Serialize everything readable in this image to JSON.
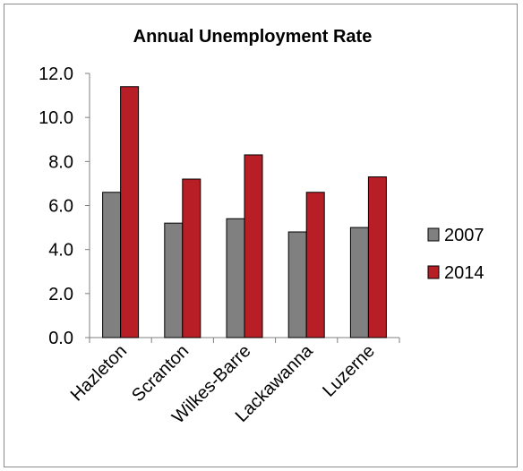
{
  "chart_data": {
    "type": "bar",
    "title": "Annual Unemployment Rate",
    "xlabel": "",
    "ylabel": "",
    "categories": [
      "Hazleton",
      "Scranton",
      "Wilkes-Barre",
      "Lackawanna",
      "Luzerne"
    ],
    "series": [
      {
        "name": "2007",
        "values": [
          6.6,
          5.2,
          5.4,
          4.8,
          5.0
        ],
        "color": "#808080"
      },
      {
        "name": "2014",
        "values": [
          11.4,
          7.2,
          8.3,
          6.6,
          7.3
        ],
        "color": "#b81e26"
      }
    ],
    "ylim": [
      0,
      12
    ],
    "yticks": [
      "0.0",
      "2.0",
      "4.0",
      "6.0",
      "8.0",
      "10.0",
      "12.0"
    ],
    "grid": false,
    "legend_position": "right"
  }
}
